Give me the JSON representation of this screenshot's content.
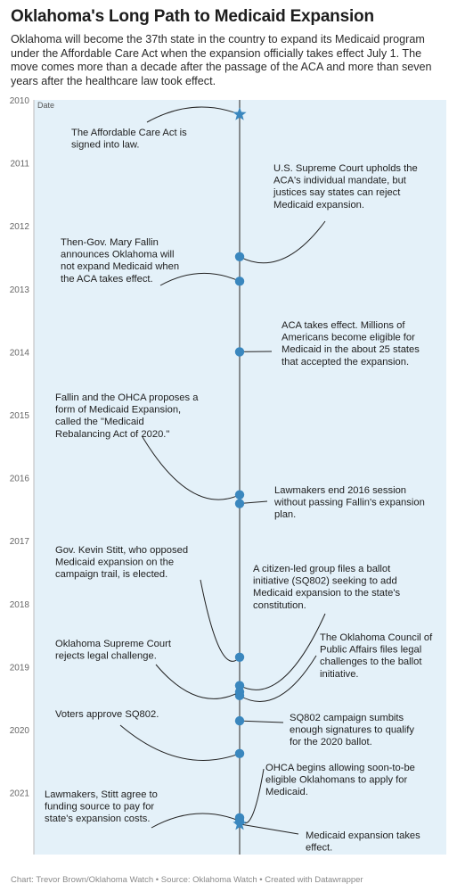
{
  "title": "Oklahoma's Long Path to Medicaid Expansion",
  "subtitle": "Oklahoma will become the 37th state in the country to expand its Medicaid program under the Affordable Care Act when the expansion officially takes effect July 1. The move comes more than a decade after the passage of the ACA and more than seven years after the healthcare law took effect.",
  "footer": "Chart: Trevor Brown/Oklahoma Watch • Source: Oklahoma Watch • Created with Datawrapper",
  "chart_data": {
    "type": "scatter",
    "ylabel": "Date",
    "ylim": [
      2010,
      2021.55
    ],
    "yticks": [
      "2010",
      "2011",
      "2012",
      "2013",
      "2014",
      "2015",
      "2016",
      "2017",
      "2018",
      "2019",
      "2020",
      "2021"
    ],
    "colors": {
      "background": "#e4f1f9",
      "line": "#555555",
      "point": "#3a87be",
      "axis": "#bbbbbb"
    },
    "events": [
      {
        "date": 2010.23,
        "marker": "star",
        "side": "left",
        "text": [
          "The Affordable Care Act is",
          "signed into law."
        ]
      },
      {
        "date": 2012.49,
        "marker": "dot",
        "side": "right",
        "text": [
          "U.S. Supreme Court upholds the",
          "ACA's individual mandate, but",
          "justices say states can reject",
          "Medicaid expansion."
        ]
      },
      {
        "date": 2012.88,
        "marker": "dot",
        "side": "left",
        "text": [
          "Then-Gov. Mary Fallin",
          "announces Oklahoma will",
          "not expand Medicaid when",
          "the ACA takes effect."
        ]
      },
      {
        "date": 2014.0,
        "marker": "dot",
        "side": "right",
        "text": [
          "ACA takes effect. Millions of",
          "Americans become eligible for",
          "Medicaid in the about 25 states",
          "that accepted the expansion."
        ]
      },
      {
        "date": 2016.27,
        "marker": "dot",
        "side": "left",
        "text": [
          "Fallin and the OHCA proposes a",
          "form of Medicaid Expansion,",
          "called the \"Medicaid",
          "Rebalancing Act of 2020.\""
        ]
      },
      {
        "date": 2016.41,
        "marker": "dot",
        "side": "right",
        "text": [
          "Lawmakers end 2016 session",
          "without passing Fallin's expansion",
          "plan."
        ]
      },
      {
        "date": 2018.85,
        "marker": "dot",
        "side": "left",
        "text": [
          "Gov. Kevin Stitt, who opposed",
          "Medicaid expansion on the",
          "campaign trail, is elected."
        ]
      },
      {
        "date": 2019.3,
        "marker": "dot",
        "side": "right",
        "text": [
          "A citizen-led group files a ballot",
          "initiative (SQ802) seeking to add",
          "Medicaid expansion to the state's",
          "constitution."
        ]
      },
      {
        "date": 2019.46,
        "marker": "dot",
        "side": "right",
        "text": [
          "The Oklahoma Council of",
          "Public Affairs files legal",
          "challenges to the ballot",
          "initiative."
        ]
      },
      {
        "date": 2019.4,
        "marker": "dot",
        "side": "left",
        "text": [
          "Oklahoma Supreme Court",
          "rejects legal challenge."
        ]
      },
      {
        "date": 2019.86,
        "marker": "dot",
        "side": "right",
        "text": [
          "SQ802 campaign sumbits",
          "enough signatures to qualify",
          "for the 2020 ballot."
        ]
      },
      {
        "date": 2020.38,
        "marker": "dot",
        "side": "left",
        "text": [
          "Voters approve SQ802."
        ]
      },
      {
        "date": 2021.4,
        "marker": "dot",
        "side": "right",
        "text": [
          "OHCA begins allowing soon-to-be",
          "eligible Oklahomans to apply for",
          "Medicaid."
        ]
      },
      {
        "date": 2021.45,
        "marker": "dot",
        "side": "left",
        "text": [
          "Lawmakers, Stitt agree to",
          "funding source to pay for",
          "state's expansion costs."
        ]
      },
      {
        "date": 2021.5,
        "marker": "star",
        "side": "right",
        "text": [
          "Medicaid expansion takes",
          "effect."
        ]
      }
    ]
  }
}
